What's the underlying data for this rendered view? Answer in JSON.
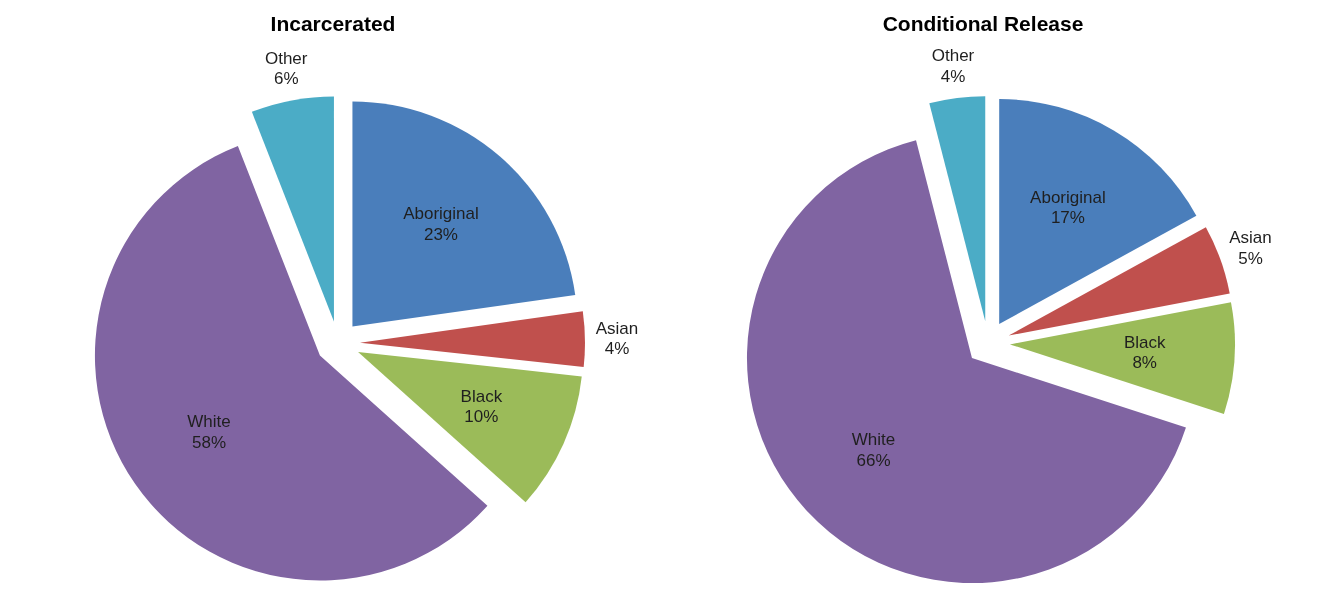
{
  "chart_data": [
    {
      "type": "pie",
      "title": "Incarcerated",
      "categories": [
        "Aboriginal",
        "Asian",
        "Black",
        "White",
        "Other"
      ],
      "values": [
        23,
        4,
        10,
        58,
        6
      ],
      "value_labels": [
        "23%",
        "4%",
        "10%",
        "58%",
        "6%"
      ],
      "colors": [
        "#4a7ebb",
        "#c0504d",
        "#9bbb59",
        "#8064a2",
        "#4bacc6"
      ]
    },
    {
      "type": "pie",
      "title": "Conditional Release",
      "categories": [
        "Aboriginal",
        "Asian",
        "Black",
        "White",
        "Other"
      ],
      "values": [
        17,
        5,
        8,
        66,
        4
      ],
      "value_labels": [
        "17%",
        "5%",
        "8%",
        "66%",
        "4%"
      ],
      "colors": [
        "#4a7ebb",
        "#c0504d",
        "#9bbb59",
        "#8064a2",
        "#4bacc6"
      ]
    }
  ]
}
